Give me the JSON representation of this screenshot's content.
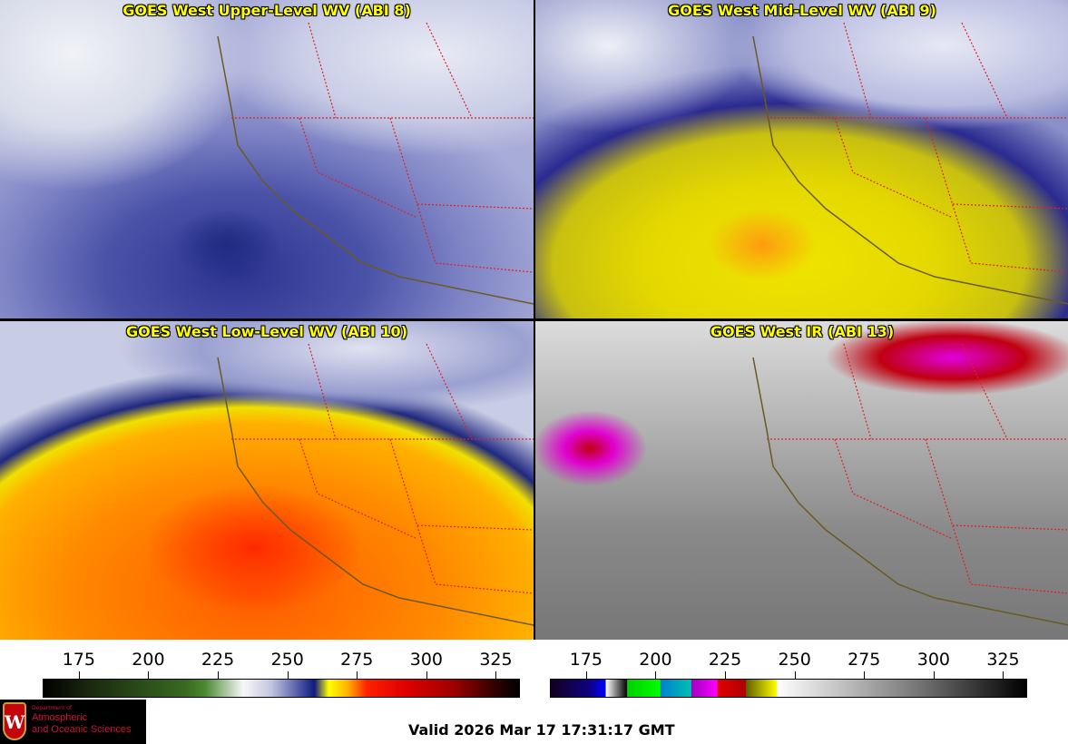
{
  "panels": [
    {
      "title": "GOES West Upper-Level WV (ABI 8)"
    },
    {
      "title": "GOES West Mid-Level WV (ABI 9)"
    },
    {
      "title": "GOES West Low-Level WV (ABI 10)"
    },
    {
      "title": "GOES West IR (ABI 13)"
    }
  ],
  "colorbars": [
    {
      "name": "water-vapor",
      "ticks": [
        "175",
        "200",
        "225",
        "250",
        "275",
        "300",
        "325"
      ],
      "range": [
        162,
        333
      ]
    },
    {
      "name": "infrared",
      "ticks": [
        "175",
        "200",
        "225",
        "250",
        "275",
        "300",
        "325"
      ],
      "range": [
        162,
        333
      ]
    }
  ],
  "logo": {
    "line0": "Department of",
    "line1": "Atmospheric",
    "line2": "and Oceanic Sciences",
    "emblem": "W"
  },
  "valid_time": "Valid 2026 Mar 17 17:31:17 GMT",
  "colors": {
    "title": "#ffff00",
    "borders": "#e02020",
    "coast": "#6b5a20"
  }
}
